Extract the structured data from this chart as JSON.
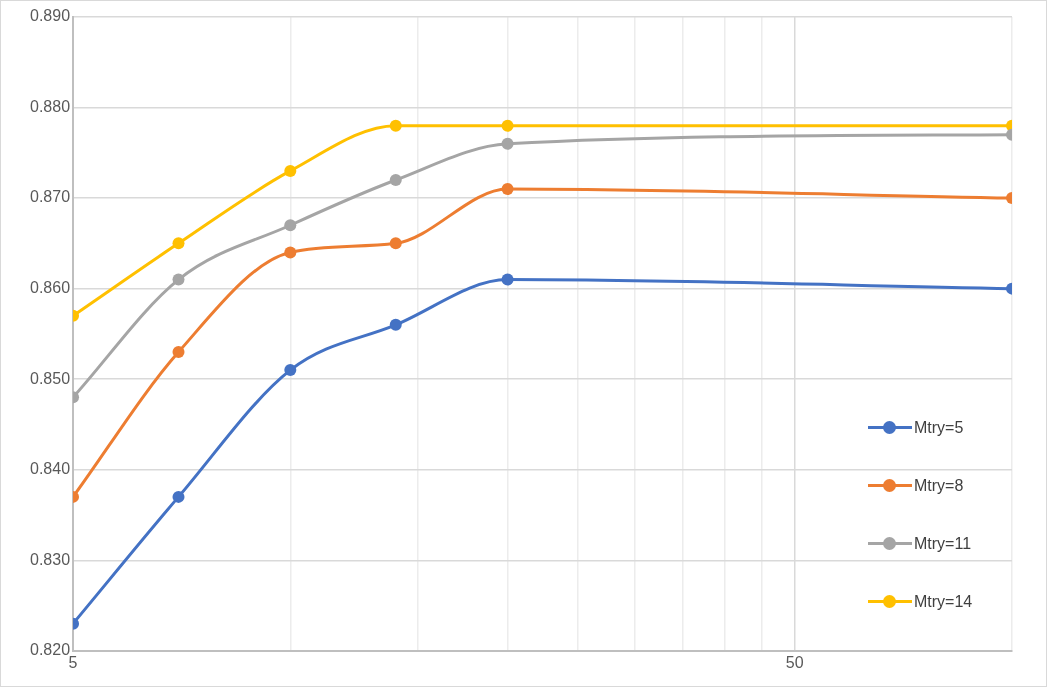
{
  "chart_data": {
    "type": "line",
    "x": [
      5,
      7,
      10,
      14,
      20,
      100
    ],
    "log": "x",
    "series": [
      {
        "name": "Mtry=5",
        "color": "#4472c4",
        "values": [
          0.823,
          0.837,
          0.851,
          0.856,
          0.861,
          0.86
        ]
      },
      {
        "name": "Mtry=8",
        "color": "#ed7d31",
        "values": [
          0.837,
          0.853,
          0.864,
          0.865,
          0.871,
          0.87
        ]
      },
      {
        "name": "Mtry=11",
        "color": "#a5a5a5",
        "values": [
          0.848,
          0.861,
          0.867,
          0.872,
          0.876,
          0.877
        ]
      },
      {
        "name": "Mtry=14",
        "color": "#ffc000",
        "values": [
          0.857,
          0.865,
          0.873,
          0.878,
          0.878,
          0.878
        ]
      }
    ],
    "xlim": [
      5,
      100
    ],
    "xticks": [
      5,
      {
        "value": 10,
        "label": null
      },
      {
        "value": 15,
        "label": null
      },
      {
        "value": 20,
        "label": null
      },
      {
        "value": 25,
        "label": null
      },
      {
        "value": 30,
        "label": null
      },
      {
        "value": 35,
        "label": null
      },
      {
        "value": 40,
        "label": null
      },
      {
        "value": 45,
        "label": null
      },
      50,
      {
        "value": 100,
        "label": null
      }
    ],
    "ylim": [
      0.82,
      0.89
    ],
    "yticks": [
      {
        "value": 0.82,
        "label": "0.820"
      },
      {
        "value": 0.83,
        "label": "0.830"
      },
      {
        "value": 0.84,
        "label": "0.840"
      },
      {
        "value": 0.85,
        "label": "0.850"
      },
      {
        "value": 0.86,
        "label": "0.860"
      },
      {
        "value": 0.87,
        "label": "0.870"
      },
      {
        "value": 0.88,
        "label": "0.880"
      },
      {
        "value": 0.89,
        "label": "0.890"
      }
    ],
    "grid": true,
    "legend": "bottom right",
    "marker": "circle",
    "line_style": "solid"
  }
}
